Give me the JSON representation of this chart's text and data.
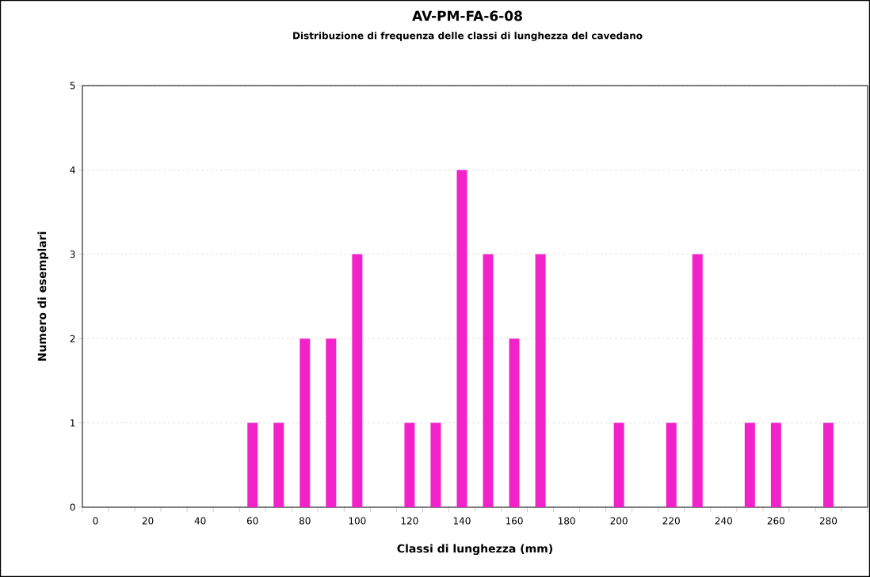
{
  "chart_data": {
    "type": "bar",
    "title": "AV-PM-FA-6-08",
    "subtitle": "Distribuzione di frequenza delle classi di lunghezza del cavedano",
    "xlabel": "Classi di lunghezza (mm)",
    "ylabel": "Numero di esemplari",
    "categories": [
      "0",
      null,
      "20",
      null,
      "40",
      null,
      "60",
      null,
      "80",
      null,
      "100",
      null,
      "120",
      null,
      "140",
      null,
      "160",
      null,
      "180",
      null,
      "200",
      null,
      "220",
      null,
      "240",
      null,
      "260",
      null,
      "280",
      null
    ],
    "values": [
      0,
      0,
      0,
      0,
      0,
      0,
      1,
      1,
      2,
      2,
      3,
      0,
      1,
      1,
      4,
      3,
      2,
      3,
      0,
      0,
      1,
      0,
      1,
      3,
      0,
      1,
      1,
      0,
      1,
      0
    ],
    "color": "#f321c9",
    "ylim": [
      0,
      5
    ],
    "yticks": [
      0,
      1,
      2,
      3,
      4,
      5
    ],
    "grid": "y"
  }
}
